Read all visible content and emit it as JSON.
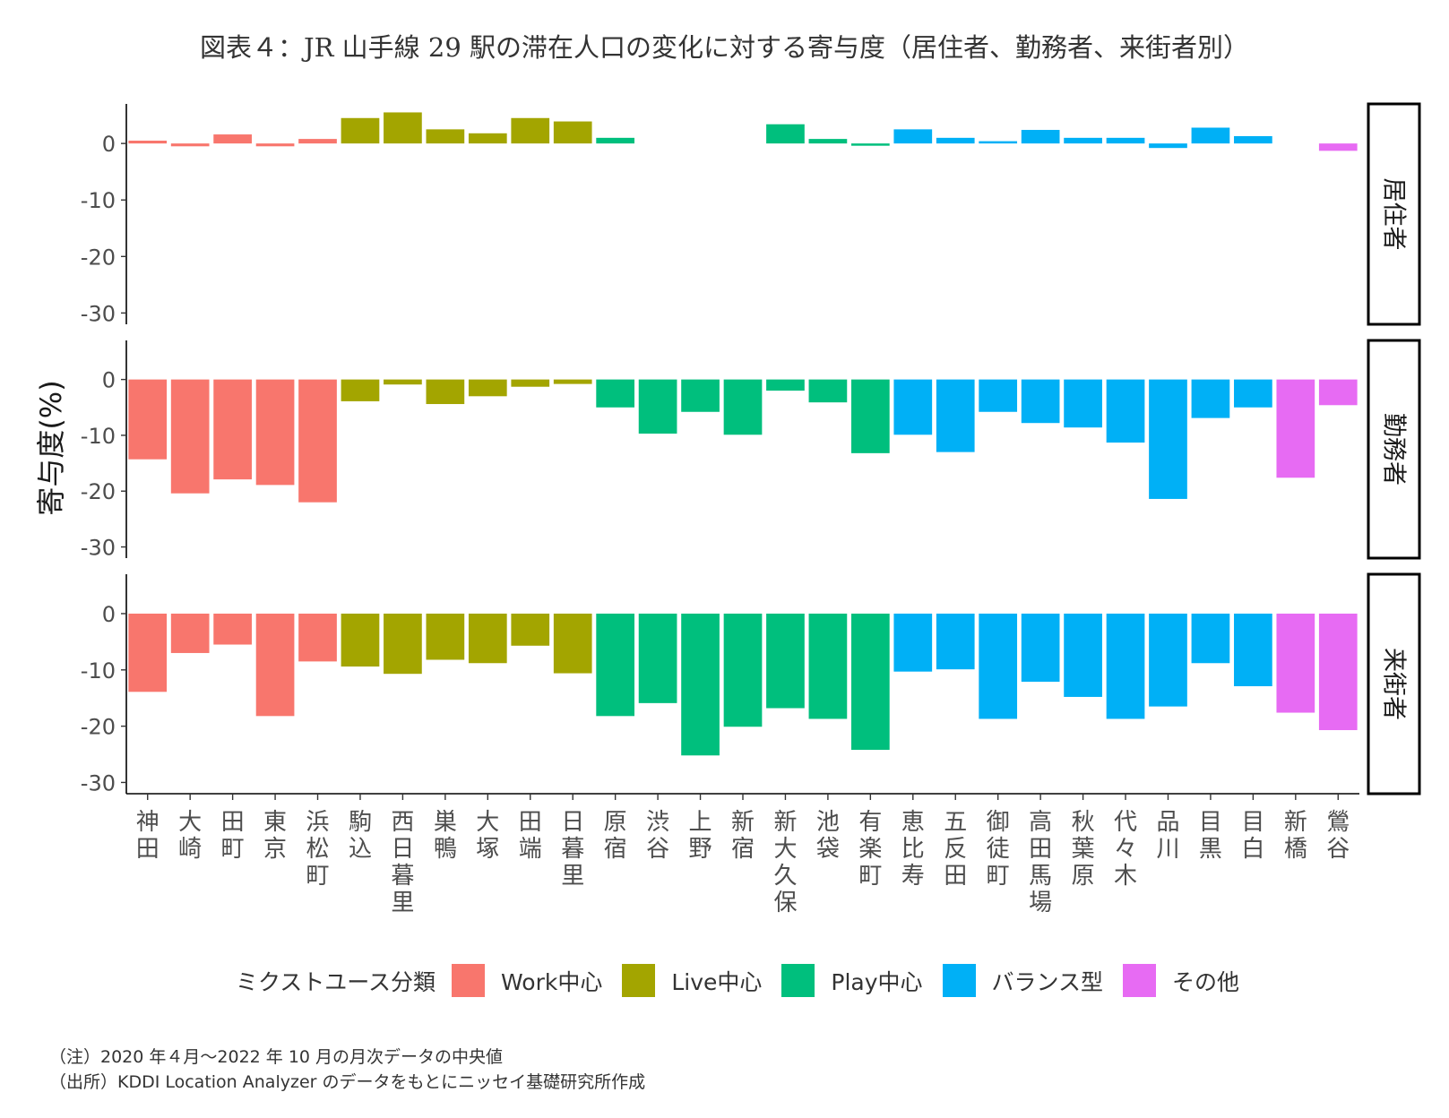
{
  "chart_data": {
    "type": "bar",
    "title": "図表４：JR 山手線 29 駅の滞在人口の変化に対する寄与度（居住者、勤務者、来街者別）",
    "ylabel": "寄与度(%)",
    "xlabel": "",
    "ylim": [
      -32,
      7
    ],
    "yticks": [
      0,
      -10,
      -20,
      -30
    ],
    "ytick_labels": [
      "0",
      "-10",
      "-20",
      "-30"
    ],
    "categories": [
      "神田",
      "大崎",
      "田町",
      "東京",
      "浜松町",
      "駒込",
      "西日暮里",
      "巣鴨",
      "大塚",
      "田端",
      "日暮里",
      "原宿",
      "渋谷",
      "上野",
      "新宿",
      "新大久保",
      "池袋",
      "有楽町",
      "恵比寿",
      "五反田",
      "御徒町",
      "高田馬場",
      "秋葉原",
      "代々木",
      "品川",
      "目黒",
      "目白",
      "新橋",
      "鶯谷"
    ],
    "group_index": [
      0,
      0,
      0,
      0,
      0,
      1,
      1,
      1,
      1,
      1,
      1,
      2,
      2,
      2,
      2,
      2,
      2,
      2,
      3,
      3,
      3,
      3,
      3,
      3,
      3,
      3,
      3,
      4,
      4
    ],
    "groups": [
      {
        "name": "Work中心",
        "color": "#F8766D"
      },
      {
        "name": "Live中心",
        "color": "#A3A500"
      },
      {
        "name": "Play中心",
        "color": "#00BF7D"
      },
      {
        "name": "バランス型",
        "color": "#00B0F6"
      },
      {
        "name": "その他",
        "color": "#E76BF3"
      }
    ],
    "legend_title": "ミクストユース分類",
    "series": [
      {
        "name": "居住者",
        "values": [
          0.5,
          -0.5,
          1.6,
          -0.5,
          0.8,
          4.5,
          5.5,
          2.5,
          1.8,
          4.5,
          3.9,
          1.0,
          0,
          0,
          0,
          3.4,
          0.8,
          -0.4,
          2.5,
          1.0,
          0.4,
          2.4,
          1.0,
          1.0,
          -0.8,
          2.8,
          1.3,
          0,
          -1.3
        ]
      },
      {
        "name": "勤務者",
        "values": [
          -14.3,
          -20.4,
          -17.9,
          -18.9,
          -22.0,
          -3.9,
          -0.9,
          -4.4,
          -3.0,
          -1.3,
          -0.8,
          -5.0,
          -9.7,
          -5.8,
          -9.9,
          -2.0,
          -4.1,
          -13.2,
          -9.9,
          -13.0,
          -5.8,
          -7.8,
          -8.6,
          -11.3,
          -21.4,
          -6.9,
          -5.0,
          -17.6,
          -4.6
        ]
      },
      {
        "name": "来街者",
        "values": [
          -13.9,
          -7.0,
          -5.5,
          -18.2,
          -8.5,
          -9.4,
          -10.7,
          -8.2,
          -8.8,
          -5.7,
          -10.6,
          -18.2,
          -15.9,
          -25.2,
          -20.1,
          -16.8,
          -18.7,
          -24.2,
          -10.3,
          -9.9,
          -18.7,
          -12.1,
          -14.8,
          -18.7,
          -16.5,
          -8.8,
          -12.9,
          -17.6,
          -20.7
        ]
      }
    ]
  },
  "notes": {
    "note": "（注）2020 年４月～2022 年 10 月の月次データの中央値",
    "source": "（出所）KDDI Location Analyzer のデータをもとにニッセイ基礎研究所作成"
  }
}
